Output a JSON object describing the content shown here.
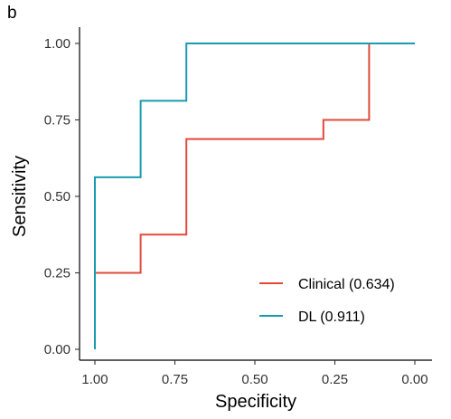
{
  "panel_label": "b",
  "chart_data": {
    "type": "line",
    "xlabel": "Specificity",
    "ylabel": "Sensitivity",
    "xlim": [
      1.0,
      0.0
    ],
    "ylim": [
      0.0,
      1.0
    ],
    "x_reversed": true,
    "xticks": [
      "1.00",
      "0.75",
      "0.50",
      "0.25",
      "0.00"
    ],
    "yticks": [
      "0.00",
      "0.25",
      "0.50",
      "0.75",
      "1.00"
    ],
    "grid": false,
    "legend_position": "bottom-right",
    "series": [
      {
        "name": "Clinical (0.634)",
        "color": "#E24A3B",
        "points": [
          [
            1.0,
            0.25
          ],
          [
            0.857,
            0.25
          ],
          [
            0.857,
            0.375
          ],
          [
            0.714,
            0.375
          ],
          [
            0.714,
            0.6875
          ],
          [
            0.286,
            0.6875
          ],
          [
            0.286,
            0.75
          ],
          [
            0.143,
            0.75
          ],
          [
            0.143,
            1.0
          ]
        ]
      },
      {
        "name": "DL (0.911)",
        "color": "#1A9BAE",
        "points": [
          [
            1.0,
            0.0
          ],
          [
            1.0,
            0.5625
          ],
          [
            0.857,
            0.5625
          ],
          [
            0.857,
            0.8125
          ],
          [
            0.714,
            0.8125
          ],
          [
            0.714,
            1.0
          ],
          [
            0.0,
            1.0
          ]
        ]
      }
    ]
  }
}
